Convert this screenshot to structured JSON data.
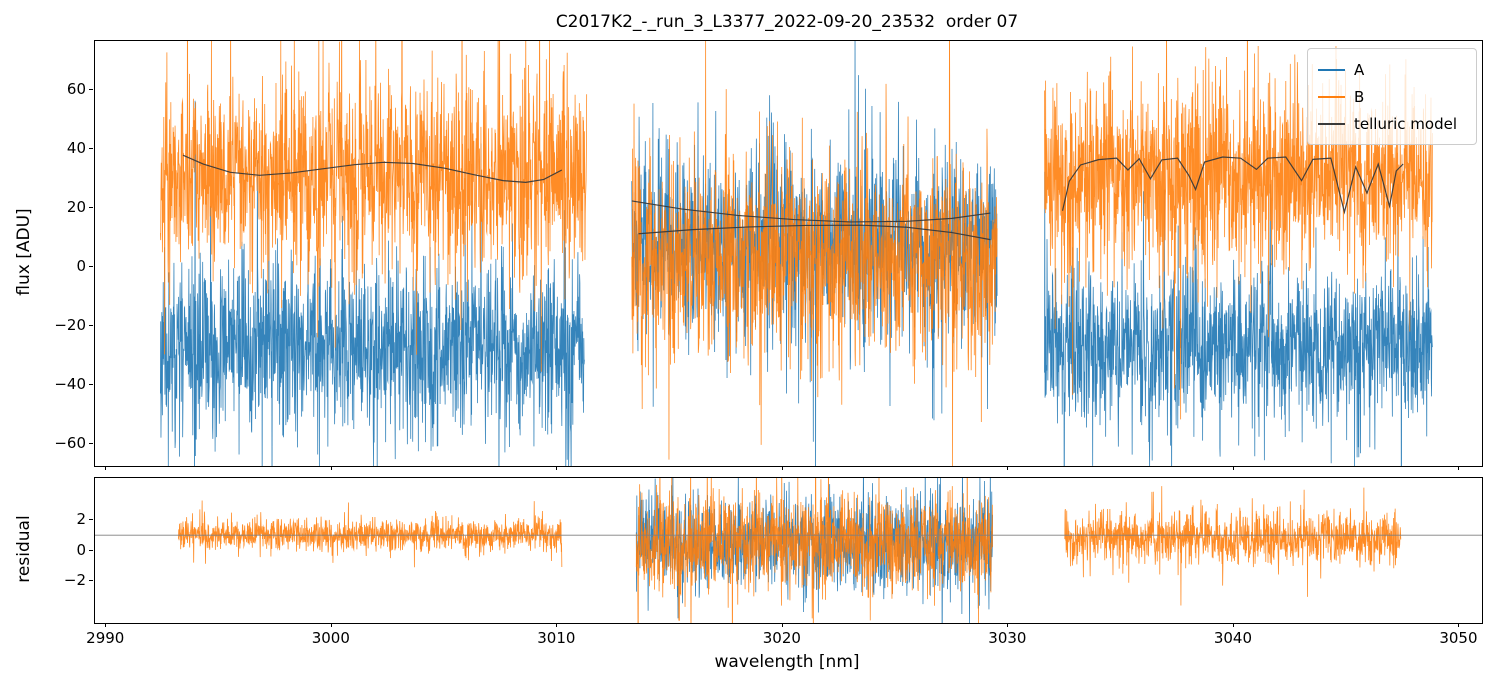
{
  "title": "C2017K2_-_run_3_L3377_2022-09-20_23532  order 07",
  "legend": {
    "items": [
      {
        "label": "A",
        "color": "#1f77b4"
      },
      {
        "label": "B",
        "color": "#ff7f0e"
      },
      {
        "label": "telluric model",
        "color": "#3a3a3a"
      }
    ]
  },
  "chart_data": {
    "type": "line",
    "title": "C2017K2_-_run_3_L3377_2022-09-20_23532  order 07",
    "x_axis": {
      "label": "wavelength [nm]",
      "lim": [
        2989.5,
        3051.0
      ],
      "ticks": [
        2990,
        3000,
        3010,
        3020,
        3030,
        3040,
        3050
      ]
    },
    "panels": [
      {
        "name": "flux",
        "ylabel": "flux [ADU]",
        "ylim": [
          -67.5,
          76.5
        ],
        "yticks": [
          -60,
          -40,
          -20,
          0,
          20,
          40,
          60
        ],
        "series": [
          {
            "name": "A",
            "color": "#1f77b4",
            "segments": [
              {
                "x": [
                  2992.4,
                  3011.2
                ],
                "mean": -27,
                "sigma": 14,
                "seed": 11
              },
              {
                "x": [
                  3013.3,
                  3029.5
                ],
                "mean": 8,
                "sigma": 15,
                "seed": 12
              },
              {
                "x": [
                  3031.6,
                  3048.8
                ],
                "mean": -27,
                "sigma": 13,
                "seed": 13
              }
            ]
          },
          {
            "name": "B",
            "color": "#ff7f0e",
            "segments": [
              {
                "x": [
                  2992.4,
                  3011.3
                ],
                "mean": 31,
                "sigma": 16,
                "seed": 21
              },
              {
                "x": [
                  3013.3,
                  3029.5
                ],
                "mean": 2,
                "sigma": 17,
                "seed": 22
              },
              {
                "x": [
                  3031.6,
                  3048.8
                ],
                "mean": 30,
                "sigma": 15,
                "seed": 23
              }
            ]
          }
        ],
        "model": {
          "name": "telluric model",
          "color": "#3a3a3a",
          "curves": [
            [
              [
                2993.4,
                37.8
              ],
              [
                2994.3,
                34.8
              ],
              [
                2995.5,
                32.0
              ],
              [
                2996.8,
                31.0
              ],
              [
                2998.2,
                31.8
              ],
              [
                2999.6,
                33.2
              ],
              [
                3001.0,
                34.6
              ],
              [
                3002.3,
                35.4
              ],
              [
                3003.6,
                35.0
              ],
              [
                3005.0,
                33.4
              ],
              [
                3006.3,
                31.2
              ],
              [
                3007.6,
                29.2
              ],
              [
                3008.6,
                28.6
              ],
              [
                3009.4,
                29.6
              ],
              [
                3010.2,
                32.8
              ]
            ],
            [
              [
                3013.3,
                22.3
              ],
              [
                3015.5,
                19.6
              ],
              [
                3018.0,
                17.4
              ],
              [
                3020.5,
                16.0
              ],
              [
                3023.0,
                15.2
              ],
              [
                3025.5,
                15.4
              ],
              [
                3027.5,
                16.4
              ],
              [
                3029.2,
                18.2
              ]
            ],
            [
              [
                3013.6,
                11.2
              ],
              [
                3016.0,
                12.6
              ],
              [
                3018.5,
                13.5
              ],
              [
                3021.0,
                14.0
              ],
              [
                3023.5,
                14.1
              ],
              [
                3025.5,
                13.4
              ],
              [
                3027.5,
                11.6
              ],
              [
                3029.2,
                9.2
              ]
            ],
            [
              [
                3032.4,
                19.0
              ],
              [
                3032.7,
                29.0
              ],
              [
                3033.2,
                34.5
              ],
              [
                3034.0,
                36.3
              ],
              [
                3034.8,
                36.8
              ],
              [
                3035.3,
                32.8
              ],
              [
                3035.8,
                36.6
              ],
              [
                3036.3,
                29.8
              ],
              [
                3036.8,
                36.2
              ],
              [
                3037.5,
                36.8
              ],
              [
                3038.0,
                31.0
              ],
              [
                3038.3,
                26.2
              ],
              [
                3038.7,
                35.5
              ],
              [
                3039.5,
                37.2
              ],
              [
                3040.3,
                36.8
              ],
              [
                3041.0,
                33.0
              ],
              [
                3041.5,
                36.8
              ],
              [
                3042.3,
                37.2
              ],
              [
                3043.0,
                29.2
              ],
              [
                3043.5,
                36.4
              ],
              [
                3044.3,
                36.8
              ],
              [
                3044.9,
                18.5
              ],
              [
                3045.4,
                33.8
              ],
              [
                3045.9,
                25.0
              ],
              [
                3046.4,
                34.8
              ],
              [
                3046.9,
                20.5
              ],
              [
                3047.2,
                32.5
              ],
              [
                3047.5,
                34.8
              ]
            ]
          ]
        }
      },
      {
        "name": "residual",
        "ylabel": "residual",
        "ylim": [
          -4.75,
          4.75
        ],
        "yticks": [
          -2,
          0,
          2
        ],
        "hline": 1,
        "series": [
          {
            "name": "A",
            "color": "#1f77b4",
            "segments": [
              {
                "x": [
                  3013.5,
                  3029.3
                ],
                "mean": 0.5,
                "sigma": 1.5,
                "seed": 31
              }
            ]
          },
          {
            "name": "B",
            "color": "#ff7f0e",
            "segments": [
              {
                "x": [
                  2993.2,
                  3010.2
                ],
                "mean": 1.05,
                "sigma": 0.5,
                "seed": 41
              },
              {
                "x": [
                  3013.5,
                  3029.3
                ],
                "mean": 0.45,
                "sigma": 1.6,
                "seed": 42
              },
              {
                "x": [
                  3032.5,
                  3047.4
                ],
                "mean": 0.75,
                "sigma": 0.85,
                "seed": 43
              }
            ]
          }
        ]
      }
    ]
  }
}
